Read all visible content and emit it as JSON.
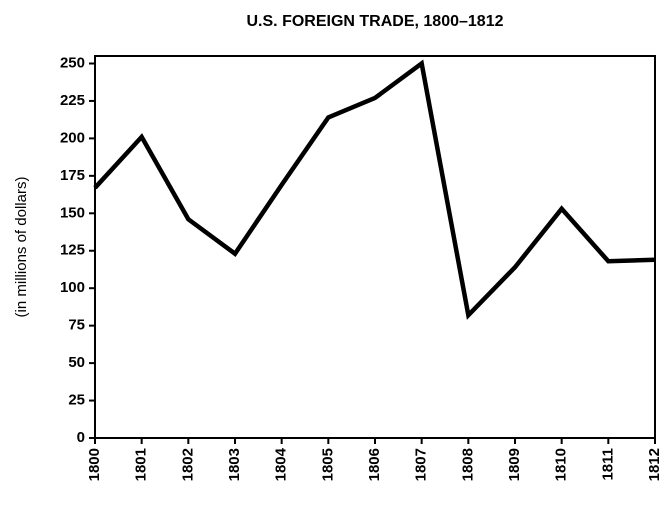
{
  "chart_data": {
    "type": "line",
    "title": "U.S. FOREIGN TRADE, 1800–1812",
    "y_label": "(in millions of dollars)",
    "categories": [
      "1800",
      "1801",
      "1802",
      "1803",
      "1804",
      "1805",
      "1806",
      "1807",
      "1808",
      "1809",
      "1810",
      "1811",
      "1812"
    ],
    "series": [
      {
        "name": "Foreign trade",
        "color": "#000000",
        "values": [
          167,
          201,
          146,
          123,
          169,
          214,
          227,
          250,
          82,
          114,
          153,
          118,
          119
        ]
      }
    ],
    "ylim": [
      0,
      255
    ],
    "yticks": [
      0,
      25,
      50,
      75,
      100,
      125,
      150,
      175,
      200,
      225,
      250
    ],
    "grid": false
  }
}
